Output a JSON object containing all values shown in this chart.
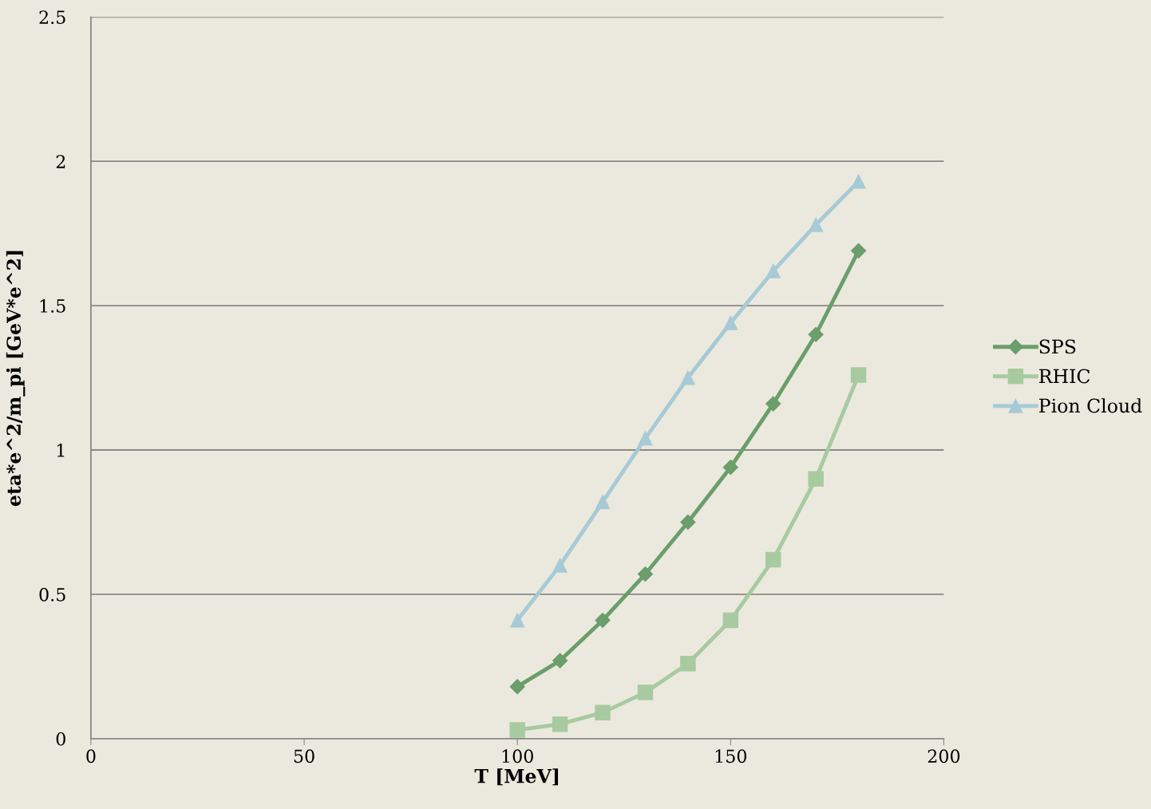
{
  "chart_data": {
    "type": "line",
    "xlabel": "T [MeV]",
    "ylabel": "eta*e^2/m_pi [GeV*e^2]",
    "x": [
      100,
      110,
      120,
      130,
      140,
      150,
      160,
      170,
      180
    ],
    "series": [
      {
        "name": "SPS",
        "color": "#6a9e6a",
        "marker": "diamond",
        "values": [
          0.18,
          0.27,
          0.41,
          0.57,
          0.75,
          0.94,
          1.16,
          1.4,
          1.69
        ]
      },
      {
        "name": "RHIC",
        "color": "#a8caa0",
        "marker": "square",
        "values": [
          0.03,
          0.05,
          0.09,
          0.16,
          0.26,
          0.41,
          0.62,
          0.9,
          1.26
        ]
      },
      {
        "name": "Pion Cloud",
        "color": "#a6cad6",
        "marker": "triangle",
        "values": [
          0.41,
          0.6,
          0.82,
          1.04,
          1.25,
          1.44,
          1.62,
          1.78,
          1.93
        ]
      }
    ],
    "xlim": [
      0,
      200
    ],
    "xticks": [
      0,
      50,
      100,
      150,
      200
    ],
    "ylim": [
      0,
      2.5
    ],
    "yticks": [
      0,
      0.5,
      1,
      1.5,
      2,
      2.5
    ],
    "grid": "y",
    "legend": "right",
    "line_style": "solid"
  }
}
